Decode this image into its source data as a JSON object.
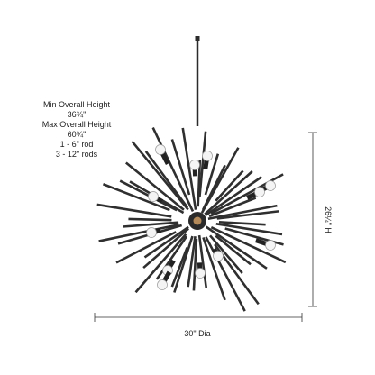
{
  "notes": {
    "lines": [
      "Min Overall Height",
      "36¾\"",
      "Max Overall Height",
      "60¾\"",
      "1 - 6\" rod",
      "3 - 12\" rods"
    ]
  },
  "dimensions": {
    "height": "26¼\" H",
    "width": "30\" Dia"
  }
}
